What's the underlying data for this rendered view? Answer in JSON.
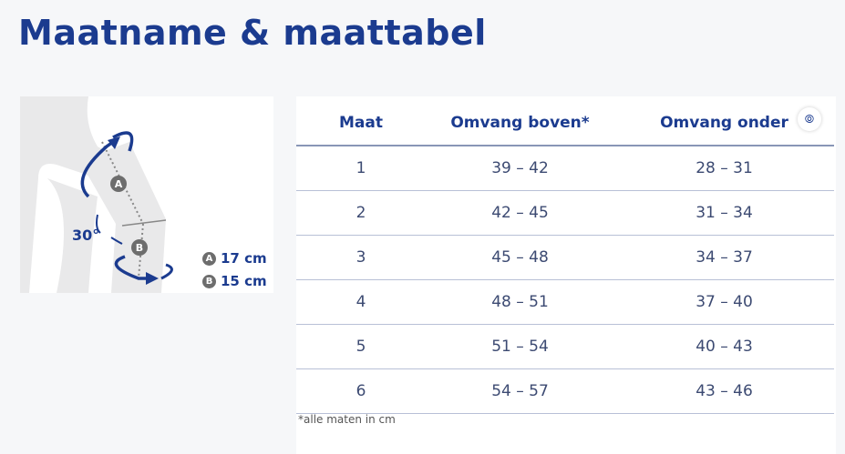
{
  "title": "Maatname & maattabel",
  "diagram": {
    "angle_label": "30°",
    "markers": [
      {
        "letter": "A",
        "value": "17 cm"
      },
      {
        "letter": "B",
        "value": "15 cm"
      }
    ]
  },
  "table": {
    "headers": [
      "Maat",
      "Omvang boven*",
      "Omvang onder"
    ],
    "rows": [
      [
        "1",
        "39 – 42",
        "28 – 31"
      ],
      [
        "2",
        "42 – 45",
        "31 – 34"
      ],
      [
        "3",
        "45 – 48",
        "34 – 37"
      ],
      [
        "4",
        "48 – 51",
        "37 – 40"
      ],
      [
        "5",
        "51 – 54",
        "40 – 43"
      ],
      [
        "6",
        "54 – 57",
        "43 – 46"
      ]
    ],
    "footnote": "*alle maten in cm"
  },
  "colors": {
    "accent": "#1b3b8f",
    "background": "#f6f7f9"
  },
  "icons": {
    "scan": "scan-icon"
  }
}
